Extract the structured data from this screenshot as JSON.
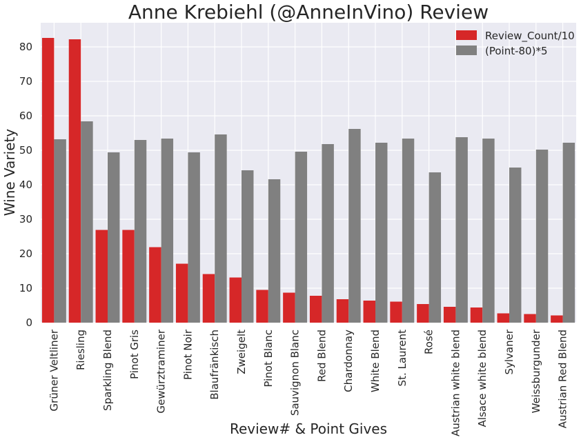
{
  "chart_data": {
    "type": "bar",
    "title": "Anne Krebiehl (@AnneInVino) Review",
    "xlabel": "Review# & Point Gives",
    "ylabel": "Wine Variety",
    "ylim": [
      0,
      87
    ],
    "yticks": [
      0,
      10,
      20,
      30,
      40,
      50,
      60,
      70,
      80
    ],
    "grid": true,
    "legend_position": "top-right",
    "categories": [
      "Grüner Veltliner",
      "Riesling",
      "Sparkling Blend",
      "Pinot Gris",
      "Gewürztraminer",
      "Pinot Noir",
      "Blaufränkisch",
      "Zweigelt",
      "Pinot Blanc",
      "Sauvignon Blanc",
      "Red Blend",
      "Chardonnay",
      "White Blend",
      "St. Laurent",
      "Rosé",
      "Austrian white blend",
      "Alsace white blend",
      "Sylvaner",
      "Weissburgunder",
      "Austrian Red Blend"
    ],
    "series": [
      {
        "name": "Review_Count/10",
        "color": "#d62728",
        "values": [
          82.6,
          82.2,
          26.9,
          26.9,
          21.9,
          17.1,
          14.1,
          13.1,
          9.5,
          8.7,
          7.8,
          6.8,
          6.4,
          6.1,
          5.4,
          4.6,
          4.4,
          2.7,
          2.5,
          2.1
        ]
      },
      {
        "name": "(Point-80)*5",
        "color": "#808080",
        "values": [
          53.2,
          58.4,
          49.4,
          53.0,
          53.4,
          49.4,
          54.6,
          44.2,
          41.6,
          49.6,
          51.8,
          56.2,
          52.2,
          53.4,
          43.6,
          53.8,
          53.4,
          45.0,
          50.2,
          52.2
        ]
      }
    ]
  }
}
